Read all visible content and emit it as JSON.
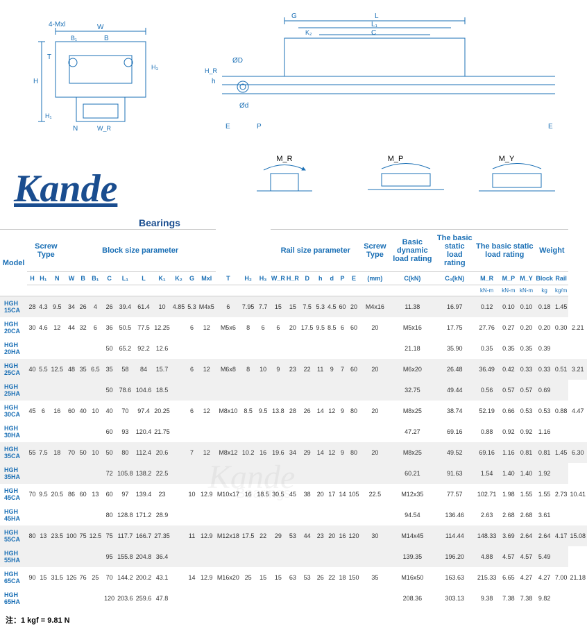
{
  "brand": "Kande",
  "bearings_label": "Bearings",
  "footnote": "注：1 kgf = 9.81 N",
  "diagram_labels": {
    "fourMxl": "4-Mxl",
    "W": "W",
    "B1": "B₁",
    "B": "B",
    "T": "T",
    "H": "H",
    "H1": "H₁",
    "N": "N",
    "WR": "W_R",
    "G": "G",
    "L": "L",
    "L1": "L₁",
    "C": "C",
    "K2": "K₂",
    "phiD": "ØD",
    "h": "h",
    "HR": "H_R",
    "phid": "Ød",
    "E": "E",
    "P": "P",
    "MR": "M_R",
    "MP": "M_P",
    "MY": "M_Y"
  },
  "headers": {
    "model": "Model",
    "screwType1": "Screw Type",
    "blockSize": "Block size parameter",
    "railSize": "Rail size parameter",
    "screwType2": "Screw Type",
    "dynLoad": "Basic dynamic load rating",
    "statLoad": "The basic static load rating",
    "staticMoment": "The basic static load rating",
    "weight": "Weight"
  },
  "subheaders": [
    "H",
    "H₁",
    "N",
    "W",
    "B",
    "B₁",
    "C",
    "L₁",
    "L",
    "K₁",
    "K₂",
    "G",
    "Mxl",
    "T",
    "H₂",
    "H₃",
    "W_R",
    "H_R",
    "D",
    "h",
    "d",
    "P",
    "E",
    "(mm)",
    "C(kN)",
    "C₀(kN)",
    "M_R",
    "M_P",
    "M_Y",
    "Block",
    "Rail"
  ],
  "units": [
    "",
    "",
    "",
    "",
    "",
    "",
    "",
    "",
    "",
    "",
    "",
    "",
    "",
    "",
    "",
    "",
    "",
    "",
    "",
    "",
    "",
    "",
    "",
    "",
    "",
    "",
    "kN-m",
    "kN-m",
    "kN-m",
    "kg",
    "kg/m"
  ],
  "colors": {
    "header": "#1a6fb5",
    "logo": "#1a4d8f",
    "diagram": "#1a6fb5",
    "oddRow": "#f0f0f0",
    "evenRow": "#ffffff"
  },
  "rows": [
    {
      "model": "HGH 15CA",
      "vals": [
        "28",
        "4.3",
        "9.5",
        "34",
        "26",
        "4",
        "26",
        "39.4",
        "61.4",
        "10",
        "4.85",
        "5.3",
        "M4x5",
        "6",
        "7.95",
        "7.7",
        "15",
        "15",
        "7.5",
        "5.3",
        "4.5",
        "60",
        "20",
        "M4x16",
        "11.38",
        "16.97",
        "0.12",
        "0.10",
        "0.10",
        "0.18",
        "1.45"
      ]
    },
    {
      "model": "HGH 20CA",
      "vals": [
        "30",
        "4.6",
        "12",
        "44",
        "32",
        "6",
        "36",
        "50.5",
        "77.5",
        "12.25",
        "",
        "6",
        "12",
        "M5x6",
        "8",
        "6",
        "6",
        "20",
        "17.5",
        "9.5",
        "8.5",
        "6",
        "60",
        "20",
        "M5x16",
        "17.75",
        "27.76",
        "0.27",
        "0.20",
        "0.20",
        "0.30",
        "2.21"
      ]
    },
    {
      "model": "HGH 20HA",
      "vals": [
        "",
        "",
        "",
        "",
        "",
        "",
        "50",
        "65.2",
        "92.2",
        "12.6",
        "",
        "",
        "",
        "",
        "",
        "",
        "",
        "",
        "",
        "",
        "",
        "",
        "",
        "",
        "21.18",
        "35.90",
        "0.35",
        "0.35",
        "0.35",
        "0.39",
        ""
      ]
    },
    {
      "model": "HGH 25CA",
      "vals": [
        "40",
        "5.5",
        "12.5",
        "48",
        "35",
        "6.5",
        "35",
        "58",
        "84",
        "15.7",
        "",
        "6",
        "12",
        "M6x8",
        "8",
        "10",
        "9",
        "23",
        "22",
        "11",
        "9",
        "7",
        "60",
        "20",
        "M6x20",
        "26.48",
        "36.49",
        "0.42",
        "0.33",
        "0.33",
        "0.51",
        "3.21"
      ]
    },
    {
      "model": "HGH 25HA",
      "vals": [
        "",
        "",
        "",
        "",
        "",
        "",
        "50",
        "78.6",
        "104.6",
        "18.5",
        "",
        "",
        "",
        "",
        "",
        "",
        "",
        "",
        "",
        "",
        "",
        "",
        "",
        "",
        "32.75",
        "49.44",
        "0.56",
        "0.57",
        "0.57",
        "0.69",
        ""
      ]
    },
    {
      "model": "HGH 30CA",
      "vals": [
        "45",
        "6",
        "16",
        "60",
        "40",
        "10",
        "40",
        "70",
        "97.4",
        "20.25",
        "",
        "6",
        "12",
        "M8x10",
        "8.5",
        "9.5",
        "13.8",
        "28",
        "26",
        "14",
        "12",
        "9",
        "80",
        "20",
        "M8x25",
        "38.74",
        "52.19",
        "0.66",
        "0.53",
        "0.53",
        "0.88",
        "4.47"
      ]
    },
    {
      "model": "HGH 30HA",
      "vals": [
        "",
        "",
        "",
        "",
        "",
        "",
        "60",
        "93",
        "120.4",
        "21.75",
        "",
        "",
        "",
        "",
        "",
        "",
        "",
        "",
        "",
        "",
        "",
        "",
        "",
        "",
        "47.27",
        "69.16",
        "0.88",
        "0.92",
        "0.92",
        "1.16",
        ""
      ]
    },
    {
      "model": "HGH 35CA",
      "vals": [
        "55",
        "7.5",
        "18",
        "70",
        "50",
        "10",
        "50",
        "80",
        "112.4",
        "20.6",
        "",
        "7",
        "12",
        "M8x12",
        "10.2",
        "16",
        "19.6",
        "34",
        "29",
        "14",
        "12",
        "9",
        "80",
        "20",
        "M8x25",
        "49.52",
        "69.16",
        "1.16",
        "0.81",
        "0.81",
        "1.45",
        "6.30"
      ]
    },
    {
      "model": "HGH 35HA",
      "vals": [
        "",
        "",
        "",
        "",
        "",
        "",
        "72",
        "105.8",
        "138.2",
        "22.5",
        "",
        "",
        "",
        "",
        "",
        "",
        "",
        "",
        "",
        "",
        "",
        "",
        "",
        "",
        "60.21",
        "91.63",
        "1.54",
        "1.40",
        "1.40",
        "1.92",
        ""
      ]
    },
    {
      "model": "HGH 45CA",
      "vals": [
        "70",
        "9.5",
        "20.5",
        "86",
        "60",
        "13",
        "60",
        "97",
        "139.4",
        "23",
        "",
        "10",
        "12.9",
        "M10x17",
        "16",
        "18.5",
        "30.5",
        "45",
        "38",
        "20",
        "17",
        "14",
        "105",
        "22.5",
        "M12x35",
        "77.57",
        "102.71",
        "1.98",
        "1.55",
        "1.55",
        "2.73",
        "10.41"
      ]
    },
    {
      "model": "HGH 45HA",
      "vals": [
        "",
        "",
        "",
        "",
        "",
        "",
        "80",
        "128.8",
        "171.2",
        "28.9",
        "",
        "",
        "",
        "",
        "",
        "",
        "",
        "",
        "",
        "",
        "",
        "",
        "",
        "",
        "94.54",
        "136.46",
        "2.63",
        "2.68",
        "2.68",
        "3.61",
        ""
      ]
    },
    {
      "model": "HGH 55CA",
      "vals": [
        "80",
        "13",
        "23.5",
        "100",
        "75",
        "12.5",
        "75",
        "117.7",
        "166.7",
        "27.35",
        "",
        "11",
        "12.9",
        "M12x18",
        "17.5",
        "22",
        "29",
        "53",
        "44",
        "23",
        "20",
        "16",
        "120",
        "30",
        "M14x45",
        "114.44",
        "148.33",
        "3.69",
        "2.64",
        "2.64",
        "4.17",
        "15.08"
      ]
    },
    {
      "model": "HGH 55HA",
      "vals": [
        "",
        "",
        "",
        "",
        "",
        "",
        "95",
        "155.8",
        "204.8",
        "36.4",
        "",
        "",
        "",
        "",
        "",
        "",
        "",
        "",
        "",
        "",
        "",
        "",
        "",
        "",
        "139.35",
        "196.20",
        "4.88",
        "4.57",
        "4.57",
        "5.49",
        ""
      ]
    },
    {
      "model": "HGH 65CA",
      "vals": [
        "90",
        "15",
        "31.5",
        "126",
        "76",
        "25",
        "70",
        "144.2",
        "200.2",
        "43.1",
        "",
        "14",
        "12.9",
        "M16x20",
        "25",
        "15",
        "15",
        "63",
        "53",
        "26",
        "22",
        "18",
        "150",
        "35",
        "M16x50",
        "163.63",
        "215.33",
        "6.65",
        "4.27",
        "4.27",
        "7.00",
        "21.18"
      ]
    },
    {
      "model": "HGH 65HA",
      "vals": [
        "",
        "",
        "",
        "",
        "",
        "",
        "120",
        "203.6",
        "259.6",
        "47.8",
        "",
        "",
        "",
        "",
        "",
        "",
        "",
        "",
        "",
        "",
        "",
        "",
        "",
        "",
        "208.36",
        "303.13",
        "9.38",
        "7.38",
        "7.38",
        "9.82",
        ""
      ]
    }
  ]
}
